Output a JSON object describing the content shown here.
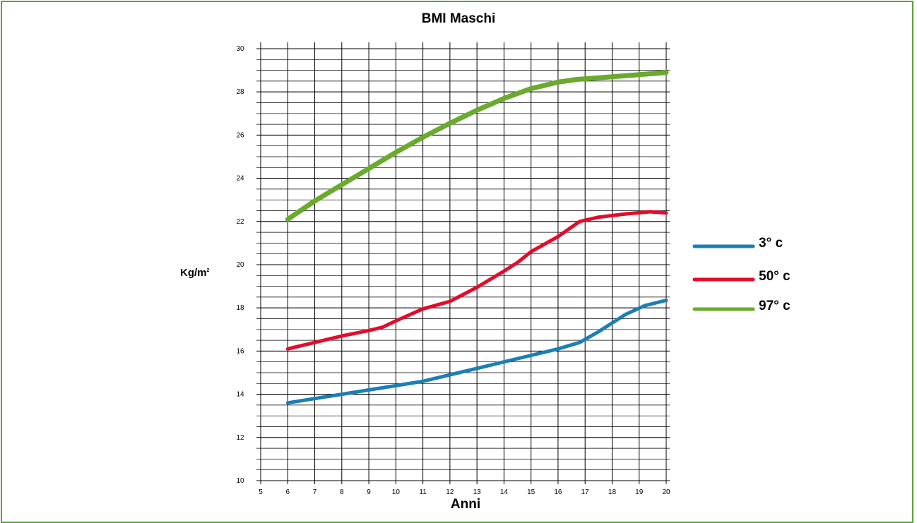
{
  "chart_data": {
    "type": "line",
    "title": "BMI Maschi",
    "xlabel": "Anni",
    "ylabel": "Kg/m",
    "ylabel_sup": "2",
    "xlim": [
      5,
      20
    ],
    "ylim": [
      10,
      30
    ],
    "x_ticks": [
      5,
      6,
      7,
      8,
      9,
      10,
      11,
      12,
      13,
      14,
      15,
      16,
      17,
      18,
      19,
      20
    ],
    "y_ticks": [
      10,
      12,
      14,
      16,
      18,
      20,
      22,
      24,
      26,
      28,
      30
    ],
    "grid": true,
    "legend_position": "right",
    "series": [
      {
        "name": "3° c",
        "color": "#1b7fb3",
        "x": [
          6,
          7,
          8,
          9,
          10,
          11,
          12,
          13,
          14,
          15,
          16,
          16.8,
          17.5,
          18.5,
          19.2,
          20
        ],
        "values": [
          13.6,
          13.8,
          14.0,
          14.2,
          14.4,
          14.6,
          14.9,
          15.2,
          15.5,
          15.8,
          16.1,
          16.4,
          16.9,
          17.7,
          18.1,
          18.35
        ]
      },
      {
        "name": "50° c",
        "color": "#e30c2b",
        "x": [
          6,
          7,
          8,
          9,
          9.5,
          10,
          11,
          12,
          13,
          14,
          14.5,
          15,
          16,
          16.8,
          17.5,
          18.5,
          19.4,
          20
        ],
        "values": [
          16.1,
          16.4,
          16.7,
          16.95,
          17.1,
          17.4,
          17.95,
          18.3,
          18.95,
          19.7,
          20.1,
          20.6,
          21.3,
          22.0,
          22.2,
          22.35,
          22.45,
          22.4
        ]
      },
      {
        "name": "97° c",
        "color": "#6aaa2e",
        "x": [
          6,
          7,
          8,
          9,
          10,
          11,
          12,
          13,
          14,
          15,
          16,
          16.7,
          17.5,
          18.5,
          19.5,
          20
        ],
        "values": [
          22.1,
          22.95,
          23.7,
          24.45,
          25.2,
          25.9,
          26.55,
          27.15,
          27.7,
          28.15,
          28.45,
          28.58,
          28.65,
          28.75,
          28.85,
          28.9
        ]
      }
    ]
  }
}
